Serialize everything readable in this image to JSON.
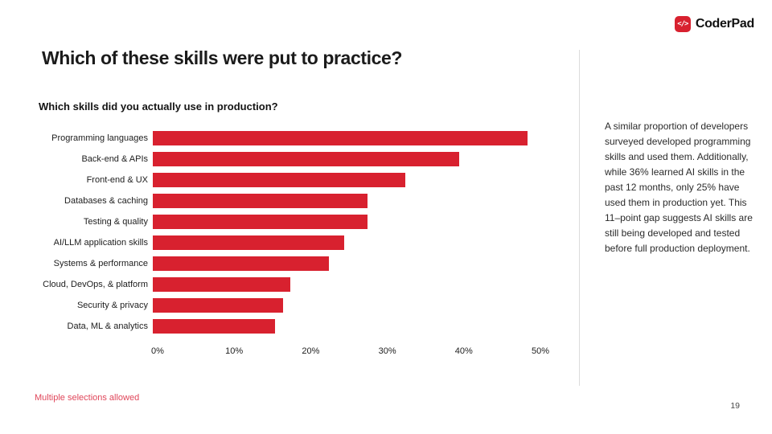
{
  "brand": {
    "logo_text": "CoderPad",
    "logo_icon_glyph": "</>",
    "logo_color": "#d8212f"
  },
  "slide": {
    "title": "Which of these skills were put to practice?",
    "footnote": "Multiple selections allowed",
    "page_number": "19"
  },
  "sidebar": {
    "commentary": "A similar proportion of developers surveyed developed programming skills and used them. Additionally, while 36% learned AI skills in the past 12 months, only 25% have used them in production yet. This 11–point gap suggests AI skills are still being developed and tested before full production deployment."
  },
  "chart_data": {
    "type": "bar",
    "orientation": "horizontal",
    "title": "Which skills did you actually use in production?",
    "categories": [
      "Programming languages",
      "Back-end & APIs",
      "Front-end & UX",
      "Databases & caching",
      "Testing & quality",
      "AI/LLM application skills",
      "Systems & performance",
      "Cloud, DevOps, & platform",
      "Security & privacy",
      "Data, ML & analytics"
    ],
    "values": [
      49,
      40,
      33,
      28,
      28,
      25,
      23,
      18,
      17,
      16
    ],
    "unit": "%",
    "xlabel": "",
    "ylabel": "",
    "xlim": [
      0,
      50
    ],
    "xticks": [
      0,
      10,
      20,
      30,
      40,
      50
    ],
    "xtick_labels": [
      "0%",
      "10%",
      "20%",
      "30%",
      "40%",
      "50%"
    ],
    "bar_color": "#d8212f",
    "grid": false,
    "legend": false
  }
}
